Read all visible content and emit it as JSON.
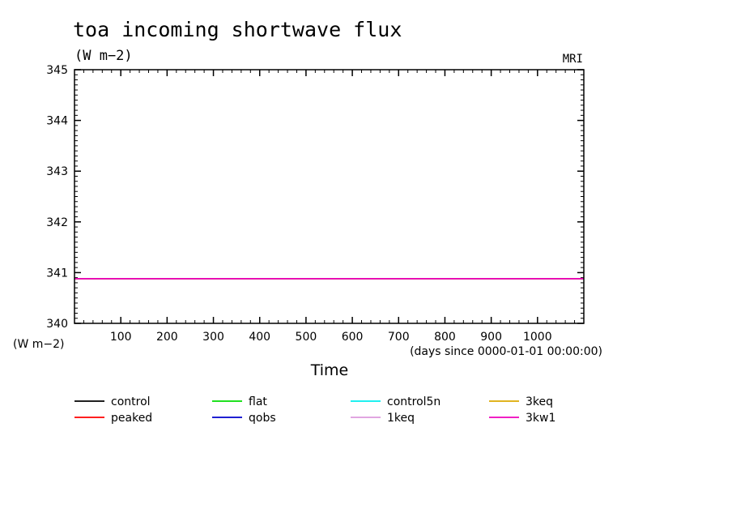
{
  "chart_data": {
    "type": "line",
    "title": "toa incoming shortwave flux",
    "units_top": "(W m−2)",
    "units_left": "(W m−2)",
    "model_label": "MRI",
    "xlabel": "Time",
    "x_units": "(days since 0000-01-01 00:00:00)",
    "xlim": [
      0,
      1100
    ],
    "ylim": [
      340,
      345
    ],
    "x_ticks": [
      100,
      200,
      300,
      400,
      500,
      600,
      700,
      800,
      900,
      1000
    ],
    "y_ticks": [
      340,
      341,
      342,
      343,
      344,
      345
    ],
    "legend_placement": "bottom",
    "series": [
      {
        "name": "control",
        "color": "#000000",
        "x": [
          0,
          1100
        ],
        "y": [
          340.88,
          340.88
        ]
      },
      {
        "name": "peaked",
        "color": "#ff0000",
        "x": [
          0,
          1100
        ],
        "y": [
          340.88,
          340.88
        ]
      },
      {
        "name": "flat",
        "color": "#00dd00",
        "x": [
          0,
          1100
        ],
        "y": [
          340.88,
          340.88
        ]
      },
      {
        "name": "qobs",
        "color": "#0000cc",
        "x": [
          0,
          1100
        ],
        "y": [
          340.88,
          340.88
        ]
      },
      {
        "name": "control5n",
        "color": "#00eeee",
        "x": [
          0,
          1100
        ],
        "y": [
          340.88,
          340.88
        ]
      },
      {
        "name": "1keq",
        "color": "#dd99dd",
        "x": [
          0,
          1100
        ],
        "y": [
          340.88,
          340.88
        ]
      },
      {
        "name": "3keq",
        "color": "#ddaa00",
        "x": [
          0,
          1100
        ],
        "y": [
          340.88,
          340.88
        ]
      },
      {
        "name": "3kw1",
        "color": "#ee00bb",
        "x": [
          0,
          1100
        ],
        "y": [
          340.88,
          340.88
        ]
      }
    ]
  }
}
